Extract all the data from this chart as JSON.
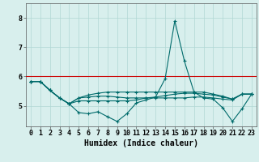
{
  "title": "",
  "xlabel": "Humidex (Indice chaleur)",
  "ylabel": "",
  "background_color": "#d8efed",
  "grid_color": "#b0d8d4",
  "line_color": "#006b6b",
  "ref_line_color": "#cc0000",
  "ref_line_y": 6.0,
  "x_ticks": [
    0,
    1,
    2,
    3,
    4,
    5,
    6,
    7,
    8,
    9,
    10,
    11,
    12,
    13,
    14,
    15,
    16,
    17,
    18,
    19,
    20,
    21,
    22,
    23
  ],
  "y_ticks": [
    5,
    6,
    7,
    8
  ],
  "xlim": [
    -0.5,
    23.5
  ],
  "ylim": [
    4.3,
    8.5
  ],
  "series": [
    [
      5.83,
      5.83,
      5.53,
      5.27,
      5.07,
      4.77,
      4.73,
      4.8,
      4.63,
      4.47,
      4.73,
      5.1,
      5.2,
      5.3,
      5.93,
      7.9,
      6.53,
      5.47,
      5.27,
      5.23,
      4.93,
      4.47,
      4.9,
      5.4
    ],
    [
      5.83,
      5.83,
      5.53,
      5.27,
      5.07,
      5.17,
      5.17,
      5.17,
      5.17,
      5.17,
      5.17,
      5.2,
      5.27,
      5.3,
      5.35,
      5.4,
      5.43,
      5.43,
      5.4,
      5.37,
      5.3,
      5.23,
      5.4,
      5.4
    ],
    [
      5.83,
      5.83,
      5.53,
      5.27,
      5.07,
      5.27,
      5.3,
      5.33,
      5.33,
      5.3,
      5.27,
      5.27,
      5.27,
      5.27,
      5.27,
      5.27,
      5.27,
      5.3,
      5.3,
      5.27,
      5.23,
      5.2,
      5.4,
      5.4
    ],
    [
      5.83,
      5.83,
      5.53,
      5.27,
      5.07,
      5.27,
      5.37,
      5.43,
      5.47,
      5.47,
      5.47,
      5.47,
      5.47,
      5.47,
      5.47,
      5.47,
      5.47,
      5.47,
      5.47,
      5.4,
      5.33,
      5.23,
      5.4,
      5.4
    ]
  ],
  "tick_fontsize": 6.0,
  "xlabel_fontsize": 7.0
}
